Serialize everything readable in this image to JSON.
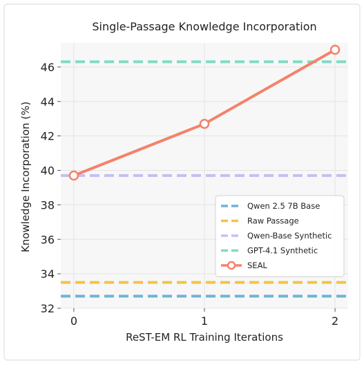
{
  "chart_data": {
    "type": "line",
    "title": "Single-Passage Knowledge Incorporation",
    "xlabel": "ReST-EM RL Training Iterations",
    "ylabel": "Knowledge Incorporation (%)",
    "xlim": [
      -0.1,
      2.1
    ],
    "ylim": [
      32,
      47.4
    ],
    "xticks": [
      0,
      1,
      2
    ],
    "yticks": [
      32,
      34,
      36,
      38,
      40,
      42,
      44,
      46
    ],
    "grid": true,
    "legend_position": "center-right",
    "baselines": [
      {
        "name": "Qwen 2.5 7B Base",
        "value": 32.7,
        "color": "#6fb3d6",
        "style": "dashed"
      },
      {
        "name": "Raw Passage",
        "value": 33.5,
        "color": "#f5c242",
        "style": "dashed"
      },
      {
        "name": "Qwen-Base Synthetic",
        "value": 39.7,
        "color": "#c5c0ef",
        "style": "dashed"
      },
      {
        "name": "GPT-4.1 Synthetic",
        "value": 46.3,
        "color": "#7fdbc3",
        "style": "dashed"
      }
    ],
    "series": [
      {
        "name": "SEAL",
        "x": [
          0,
          1,
          2
        ],
        "values": [
          39.7,
          42.7,
          47.0
        ],
        "color": "#f4826a"
      }
    ]
  }
}
